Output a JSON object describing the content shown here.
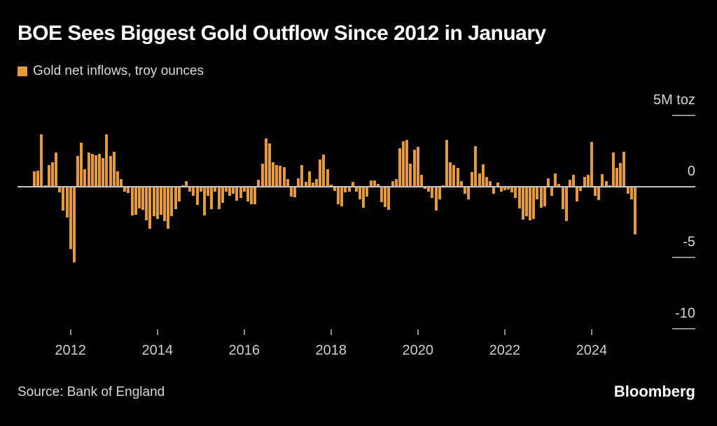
{
  "header": {
    "title": "BOE Sees Biggest Gold Outflow Since 2012 in January",
    "legend_label": "Gold net inflows, troy ounces"
  },
  "footer": {
    "source": "Source: Bank of England",
    "brand": "Bloomberg"
  },
  "colors": {
    "background": "#000000",
    "bar": "#E49A3C",
    "title": "#FFFFFF",
    "label": "#D6D6D6",
    "zero_line": "#C6C6C6",
    "tick": "#8F8F8F"
  },
  "chart_data": {
    "type": "bar",
    "title": "BOE Sees Biggest Gold Outflow Since 2012 in January",
    "series_name": "Gold net inflows, troy ounces",
    "unit_label": "5M toz",
    "ylabel": "Gold net inflows, million troy ounces",
    "xlabel": "",
    "frequency": "monthly",
    "start_month": "2011-03",
    "end_month": "2025-01",
    "ylim": [
      -11.5,
      5.5
    ],
    "grid": "right-side tick dashes only, full-width zero line",
    "legend_position": "top-left",
    "y_ticks": [
      5,
      0,
      -5,
      -10
    ],
    "y_tick_labels": [
      "5M toz",
      "0",
      "-5",
      "-10"
    ],
    "x_tick_years": [
      "2012",
      "2014",
      "2016",
      "2018",
      "2020",
      "2022",
      "2024"
    ],
    "values": [
      1.05,
      1.1,
      3.65,
      0.05,
      1.5,
      1.7,
      2.4,
      -0.4,
      -1.7,
      -2.2,
      -4.4,
      -5.35,
      2.15,
      3.1,
      1.2,
      2.4,
      2.3,
      2.2,
      2.3,
      2.0,
      3.65,
      2.15,
      2.45,
      1.05,
      0.5,
      -0.35,
      -0.45,
      -2.05,
      -2.0,
      -1.55,
      -1.65,
      -2.4,
      -3.0,
      -2.1,
      -2.3,
      -2.0,
      -2.45,
      -3.0,
      -2.1,
      -1.6,
      -1.05,
      0.05,
      0.35,
      -0.35,
      -0.65,
      -1.3,
      -0.35,
      -2.05,
      -0.65,
      -1.6,
      -0.35,
      -1.6,
      -1.15,
      -0.35,
      -0.65,
      -0.5,
      -1.0,
      -0.8,
      -0.35,
      -1.05,
      -1.25,
      -1.25,
      0.45,
      1.6,
      3.35,
      3.05,
      1.7,
      1.5,
      1.45,
      1.35,
      0.5,
      -0.7,
      -0.75,
      0.55,
      1.5,
      0.3,
      1.05,
      0.25,
      0.5,
      1.9,
      2.25,
      1.2,
      0.1,
      -0.3,
      -1.25,
      -1.4,
      -0.4,
      -0.35,
      0.3,
      -0.35,
      -0.9,
      -1.5,
      -0.7,
      0.4,
      0.4,
      0.15,
      -1.1,
      -1.45,
      -1.65,
      0.35,
      0.5,
      2.7,
      3.2,
      3.3,
      1.6,
      2.6,
      2.8,
      0.8,
      -0.15,
      -0.35,
      -0.8,
      -1.7,
      -0.9,
      0.05,
      3.3,
      1.7,
      1.5,
      1.3,
      0.35,
      -0.5,
      -0.9,
      1.0,
      2.85,
      0.9,
      1.55,
      0.65,
      0.35,
      -0.5,
      0.25,
      -0.35,
      -0.25,
      -0.2,
      -0.4,
      -0.8,
      -1.55,
      -2.35,
      -2.1,
      -2.4,
      -2.3,
      -0.9,
      -1.5,
      -1.4,
      0.55,
      -0.65,
      0.9,
      0.15,
      -1.6,
      -2.45,
      0.45,
      0.8,
      -1.05,
      -0.3,
      0.65,
      0.8,
      3.15,
      -0.65,
      -0.95,
      0.85,
      0.35,
      0.05,
      2.4,
      1.3,
      1.65,
      2.45,
      -0.5,
      -0.9,
      -3.35
    ]
  }
}
